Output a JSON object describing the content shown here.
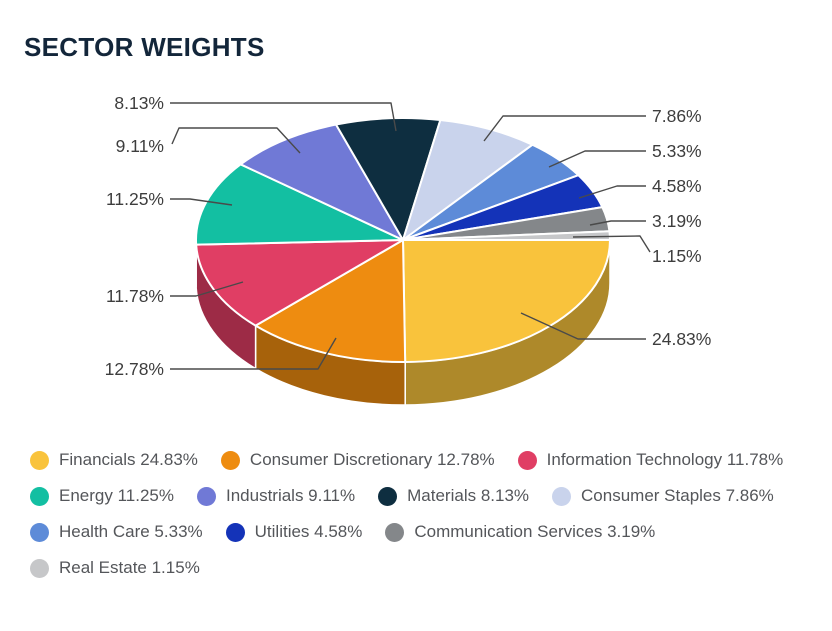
{
  "header": {
    "title": "SECTOR WEIGHTS"
  },
  "chart_data": {
    "type": "pie",
    "title": "SECTOR WEIGHTS",
    "style": "3d",
    "start_angle_deg": 0,
    "direction": "clockwise",
    "unit": "%",
    "legend_position": "bottom",
    "slices": [
      {
        "label": "Financials",
        "value": 24.83,
        "display": "24.83%",
        "color": "#F9C33C"
      },
      {
        "label": "Consumer Discretionary",
        "value": 12.78,
        "display": "12.78%",
        "color": "#EE8C10"
      },
      {
        "label": "Information Technology",
        "value": 11.78,
        "display": "11.78%",
        "color": "#E03E64"
      },
      {
        "label": "Energy",
        "value": 11.25,
        "display": "11.25%",
        "color": "#13BFA2"
      },
      {
        "label": "Industrials",
        "value": 9.11,
        "display": "9.11%",
        "color": "#7079D6"
      },
      {
        "label": "Materials",
        "value": 8.13,
        "display": "8.13%",
        "color": "#0E2E40"
      },
      {
        "label": "Consumer Staples",
        "value": 7.86,
        "display": "7.86%",
        "color": "#C9D3EC"
      },
      {
        "label": "Health Care",
        "value": 5.33,
        "display": "5.33%",
        "color": "#5D8BD8"
      },
      {
        "label": "Utilities",
        "value": 4.58,
        "display": "4.58%",
        "color": "#1433B8"
      },
      {
        "label": "Communication Services",
        "value": 3.19,
        "display": "3.19%",
        "color": "#84878A"
      },
      {
        "label": "Real Estate",
        "value": 1.15,
        "display": "1.15%",
        "color": "#C6C7C9"
      }
    ]
  }
}
